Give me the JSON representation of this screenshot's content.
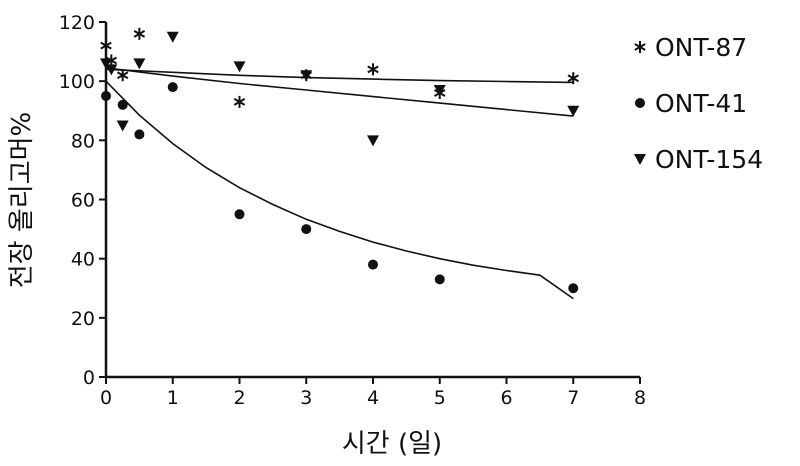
{
  "chart_data": {
    "type": "scatter",
    "xlabel": "시간 (일)",
    "ylabel": "전장 올리고머%",
    "xlim": [
      0,
      8
    ],
    "ylim": [
      0,
      120
    ],
    "x_ticks": [
      "0",
      "1",
      "2",
      "3",
      "4",
      "5",
      "6",
      "7",
      "8"
    ],
    "y_ticks": [
      "0",
      "20",
      "40",
      "60",
      "80",
      "100",
      "120"
    ],
    "grid": false,
    "legend_position": "top-right",
    "series": [
      {
        "name": "ONT-87",
        "marker": "asterisk",
        "points": [
          [
            0,
            112
          ],
          [
            0.08,
            107
          ],
          [
            0.25,
            102
          ],
          [
            0.5,
            116
          ],
          [
            2,
            93
          ],
          [
            3,
            102
          ],
          [
            4,
            104
          ],
          [
            5,
            96
          ],
          [
            7,
            101
          ]
        ],
        "fit": [
          [
            0,
            104.0
          ],
          [
            1,
            103.0
          ],
          [
            2,
            102.0
          ],
          [
            3,
            101.2
          ],
          [
            4,
            100.7
          ],
          [
            5,
            100.2
          ],
          [
            6,
            99.9
          ],
          [
            7,
            99.6
          ]
        ]
      },
      {
        "name": "ONT-41",
        "marker": "circle",
        "points": [
          [
            0,
            95
          ],
          [
            0.25,
            92
          ],
          [
            0.5,
            82
          ],
          [
            1,
            98
          ],
          [
            2,
            55
          ],
          [
            3,
            50
          ],
          [
            4,
            38
          ],
          [
            5,
            33
          ],
          [
            7,
            30
          ]
        ],
        "fit": [
          [
            0,
            100
          ],
          [
            0.5,
            88.5
          ],
          [
            1,
            78.9
          ],
          [
            1.5,
            70.8
          ],
          [
            2,
            64.0
          ],
          [
            2.5,
            58.3
          ],
          [
            3,
            53.3
          ],
          [
            3.5,
            49.2
          ],
          [
            4,
            45.6
          ],
          [
            4.5,
            42.6
          ],
          [
            5,
            40.0
          ],
          [
            5.5,
            37.8
          ],
          [
            6,
            36.0
          ],
          [
            6.5,
            34.4
          ],
          [
            7,
            26.5
          ]
        ]
      },
      {
        "name": "ONT-154",
        "marker": "triangle-down",
        "points": [
          [
            0,
            106
          ],
          [
            0.08,
            104
          ],
          [
            0.25,
            85
          ],
          [
            0.5,
            106
          ],
          [
            1,
            115
          ],
          [
            2,
            105
          ],
          [
            3,
            102
          ],
          [
            4,
            80
          ],
          [
            5,
            97
          ],
          [
            7,
            90
          ]
        ],
        "fit": [
          [
            0,
            104.5
          ],
          [
            1,
            101.7
          ],
          [
            2,
            99.2
          ],
          [
            3,
            97.0
          ],
          [
            4,
            94.8
          ],
          [
            5,
            92.6
          ],
          [
            6,
            90.4
          ],
          [
            7,
            88.2
          ]
        ]
      }
    ]
  }
}
